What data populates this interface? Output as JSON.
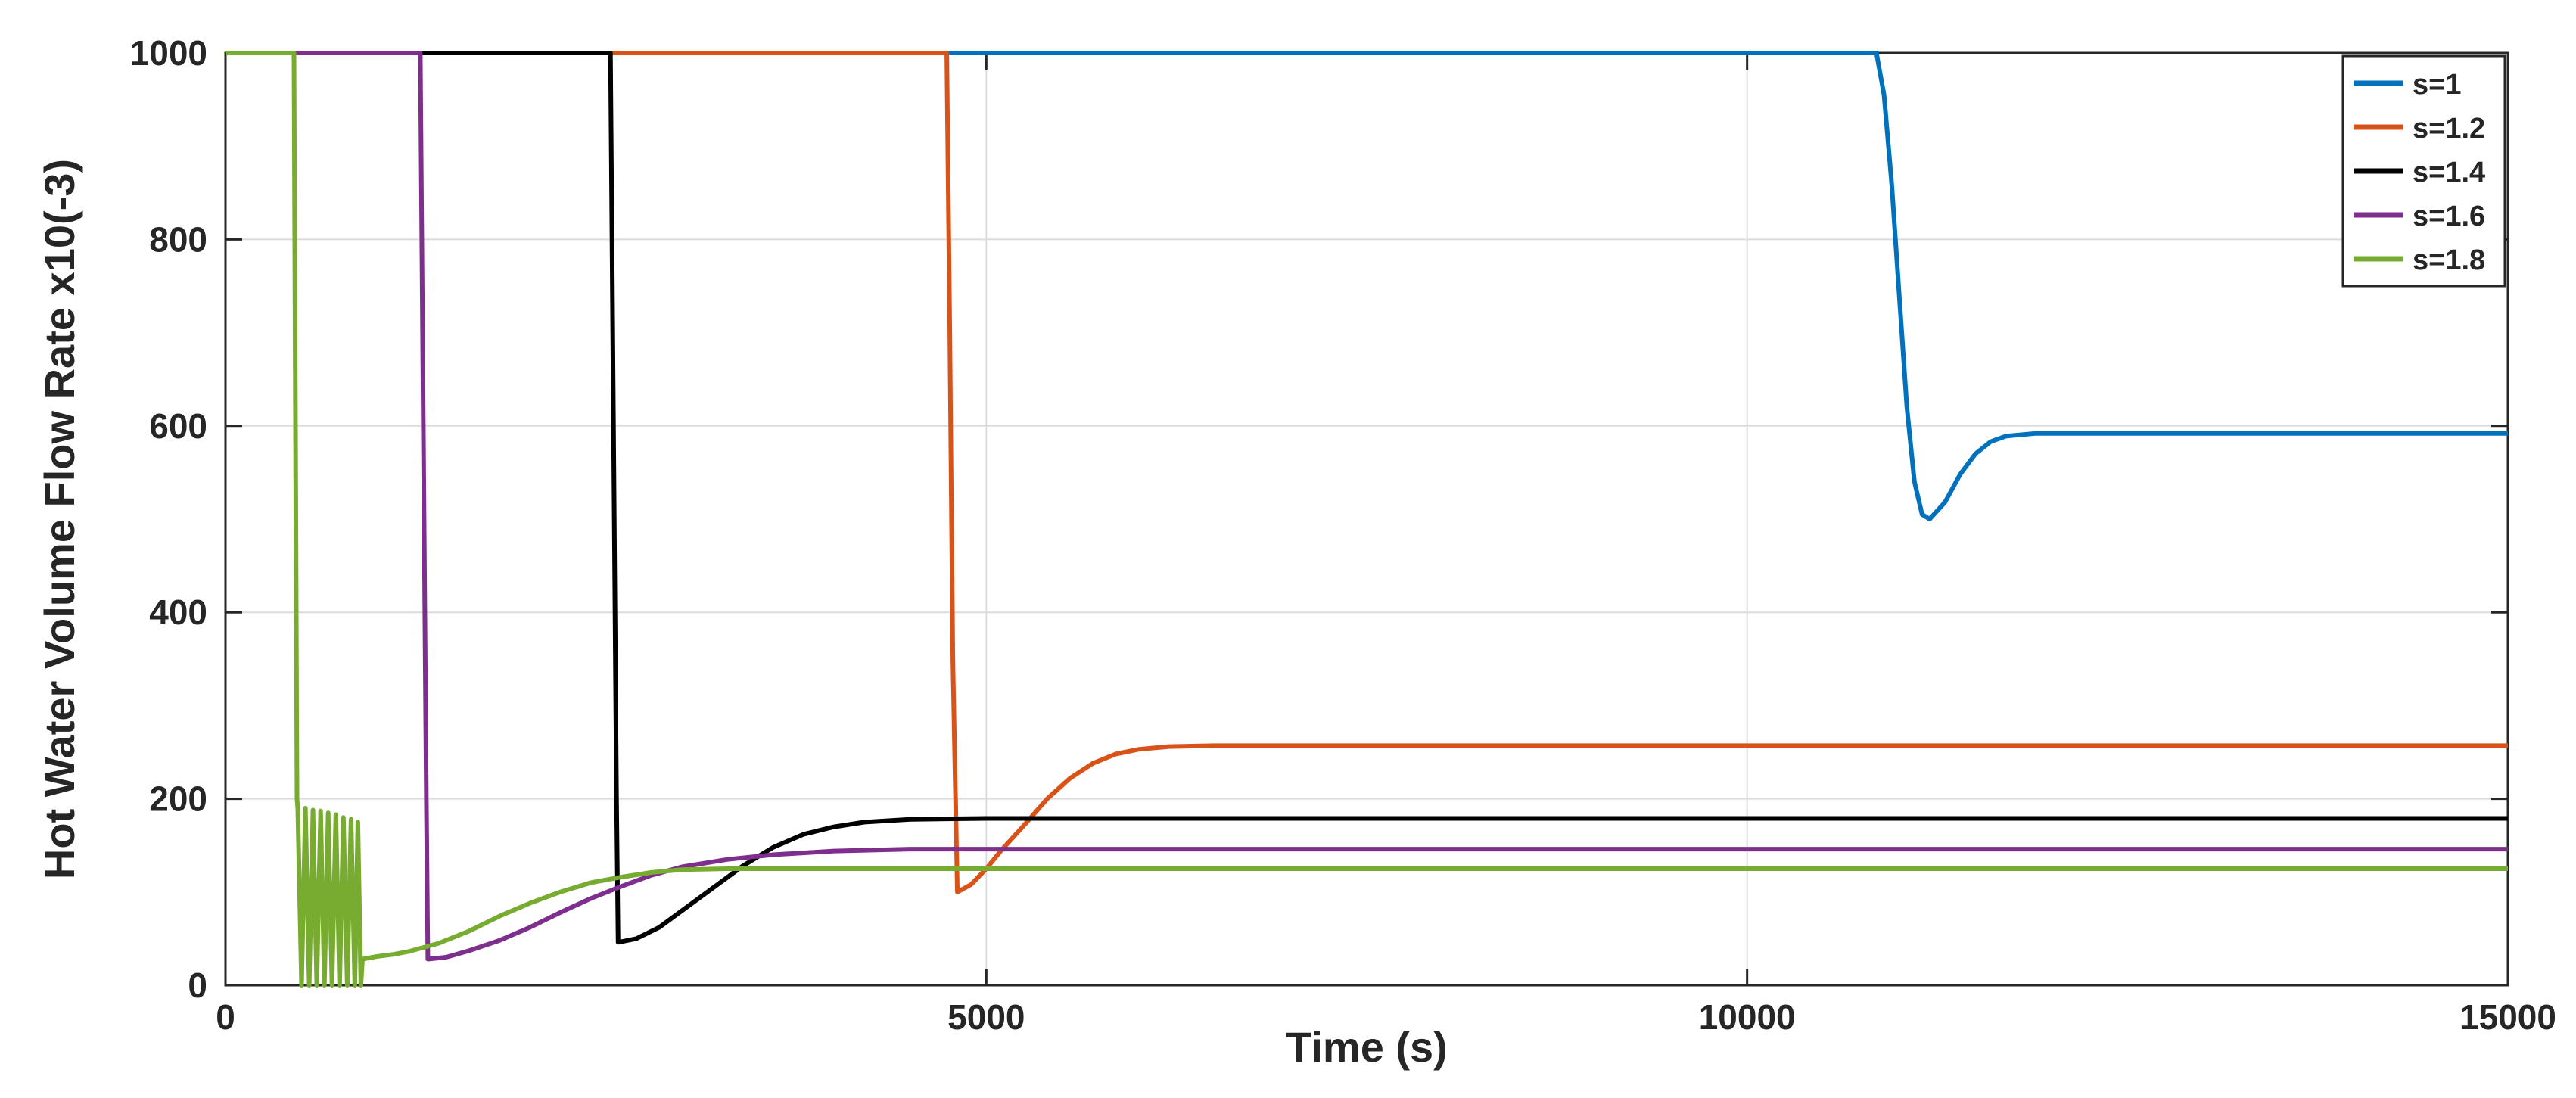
{
  "chart_data": {
    "type": "line",
    "title": "",
    "xlabel": "Time (s)",
    "ylabel": "Hot Water Volume Flow Rate x10(-3)",
    "xlim": [
      0,
      15000
    ],
    "ylim": [
      0,
      1000
    ],
    "xticks": [
      0,
      5000,
      10000,
      15000
    ],
    "yticks": [
      0,
      200,
      400,
      600,
      800,
      1000
    ],
    "grid": true,
    "legend_position": "top-right",
    "series": [
      {
        "name": "s=1",
        "color": "#0072BD",
        "points": [
          [
            0,
            1000
          ],
          [
            10850,
            1000
          ],
          [
            10900,
            955
          ],
          [
            10950,
            860
          ],
          [
            11000,
            740
          ],
          [
            11050,
            620
          ],
          [
            11100,
            540
          ],
          [
            11150,
            505
          ],
          [
            11200,
            500
          ],
          [
            11300,
            518
          ],
          [
            11400,
            548
          ],
          [
            11500,
            570
          ],
          [
            11600,
            583
          ],
          [
            11700,
            589
          ],
          [
            11900,
            592
          ],
          [
            12500,
            592
          ],
          [
            15000,
            592
          ]
        ]
      },
      {
        "name": "s=1.2",
        "color": "#D95319",
        "points": [
          [
            0,
            1000
          ],
          [
            4740,
            1000
          ],
          [
            4760,
            700
          ],
          [
            4780,
            350
          ],
          [
            4810,
            100
          ],
          [
            4900,
            108
          ],
          [
            5000,
            125
          ],
          [
            5100,
            145
          ],
          [
            5250,
            172
          ],
          [
            5400,
            200
          ],
          [
            5550,
            222
          ],
          [
            5700,
            238
          ],
          [
            5850,
            248
          ],
          [
            6000,
            253
          ],
          [
            6200,
            256
          ],
          [
            6500,
            257
          ],
          [
            15000,
            257
          ]
        ]
      },
      {
        "name": "s=1.4",
        "color": "#000000",
        "points": [
          [
            0,
            1000
          ],
          [
            2530,
            1000
          ],
          [
            2550,
            600
          ],
          [
            2570,
            200
          ],
          [
            2580,
            46
          ],
          [
            2700,
            50
          ],
          [
            2850,
            62
          ],
          [
            3000,
            80
          ],
          [
            3200,
            104
          ],
          [
            3400,
            128
          ],
          [
            3600,
            148
          ],
          [
            3800,
            162
          ],
          [
            4000,
            170
          ],
          [
            4200,
            175
          ],
          [
            4500,
            178
          ],
          [
            5000,
            179
          ],
          [
            15000,
            179
          ]
        ]
      },
      {
        "name": "s=1.6",
        "color": "#7E2F8E",
        "points": [
          [
            0,
            1000
          ],
          [
            1280,
            1000
          ],
          [
            1300,
            600
          ],
          [
            1320,
            200
          ],
          [
            1330,
            28
          ],
          [
            1450,
            30
          ],
          [
            1600,
            37
          ],
          [
            1800,
            48
          ],
          [
            2000,
            62
          ],
          [
            2200,
            78
          ],
          [
            2400,
            93
          ],
          [
            2600,
            106
          ],
          [
            2800,
            118
          ],
          [
            3000,
            127
          ],
          [
            3300,
            135
          ],
          [
            3600,
            140
          ],
          [
            4000,
            144
          ],
          [
            4500,
            146
          ],
          [
            15000,
            146
          ]
        ]
      },
      {
        "name": "s=1.8",
        "color": "#77AC30",
        "points": [
          [
            0,
            1000
          ],
          [
            450,
            1000
          ],
          [
            460,
            600
          ],
          [
            470,
            200
          ],
          [
            475,
            190
          ],
          [
            500,
            0
          ],
          [
            525,
            190
          ],
          [
            550,
            0
          ],
          [
            575,
            188
          ],
          [
            600,
            0
          ],
          [
            625,
            187
          ],
          [
            650,
            0
          ],
          [
            675,
            185
          ],
          [
            700,
            0
          ],
          [
            725,
            183
          ],
          [
            750,
            0
          ],
          [
            775,
            180
          ],
          [
            800,
            0
          ],
          [
            825,
            178
          ],
          [
            850,
            0
          ],
          [
            870,
            175
          ],
          [
            890,
            0
          ],
          [
            900,
            28
          ],
          [
            1000,
            31
          ],
          [
            1100,
            33
          ],
          [
            1200,
            36
          ],
          [
            1400,
            45
          ],
          [
            1600,
            58
          ],
          [
            1800,
            74
          ],
          [
            2000,
            88
          ],
          [
            2200,
            100
          ],
          [
            2400,
            110
          ],
          [
            2600,
            116
          ],
          [
            2800,
            121
          ],
          [
            3000,
            124
          ],
          [
            3300,
            125
          ],
          [
            15000,
            125
          ]
        ]
      }
    ]
  }
}
